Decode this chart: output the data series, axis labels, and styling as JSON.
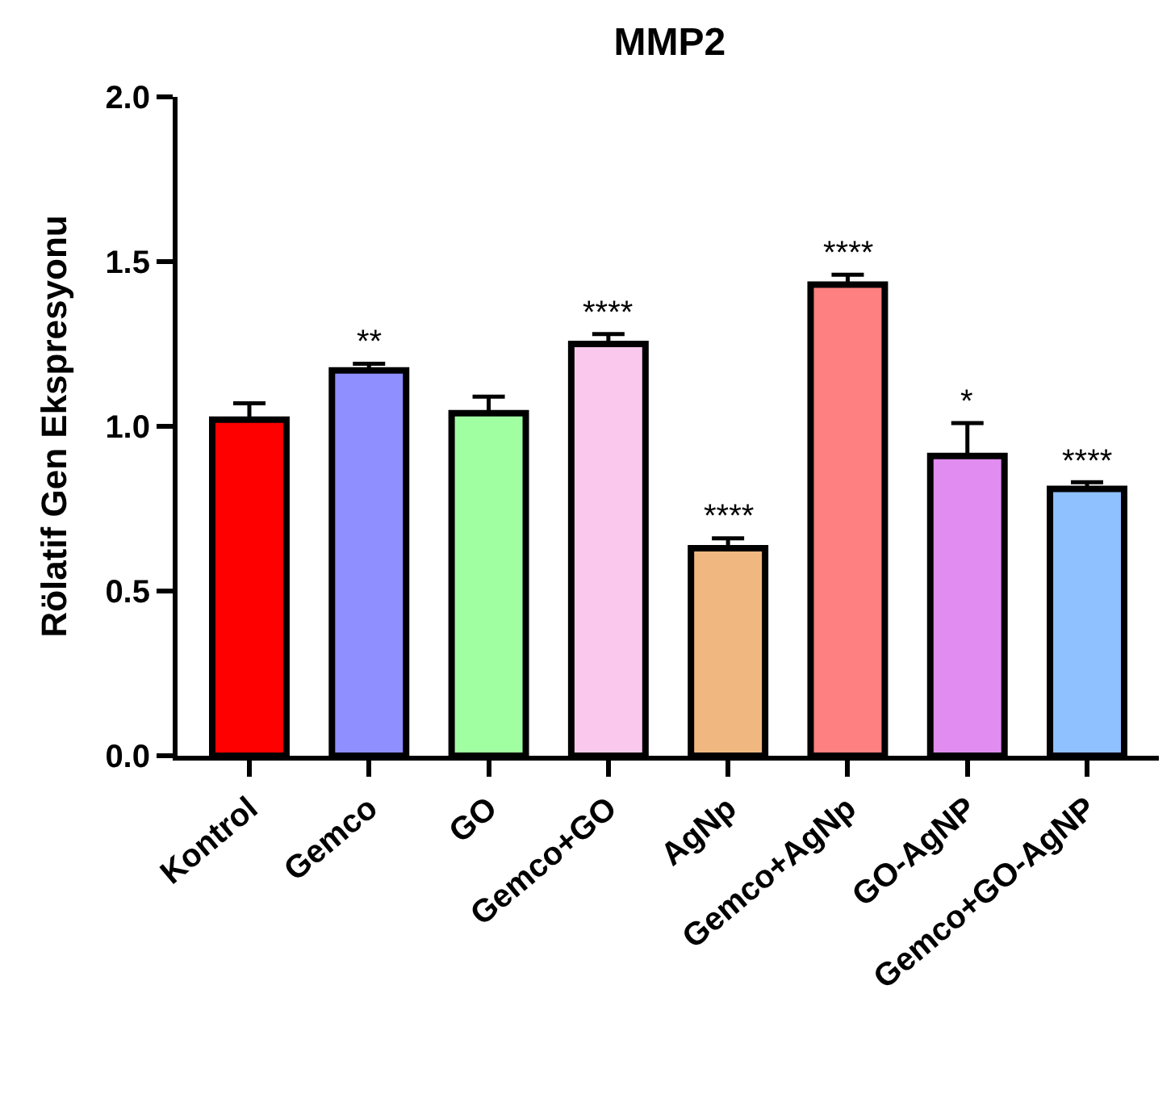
{
  "chart_data": {
    "type": "bar",
    "title": "MMP2",
    "ylabel": "Rölatif Gen Ekspresyonu",
    "categories": [
      "Kontrol",
      "Gemco",
      "GO",
      "Gemco+GO",
      "AgNp",
      "Gemco+AgNp",
      "GO-AgNP",
      "Gemco+GO-AgNP"
    ],
    "values": [
      1.02,
      1.17,
      1.04,
      1.25,
      0.63,
      1.43,
      0.91,
      0.81
    ],
    "errors": [
      [
        1.02,
        1.07
      ],
      [
        1.17,
        1.19
      ],
      [
        1.04,
        1.09
      ],
      [
        1.25,
        1.28
      ],
      [
        0.63,
        0.66
      ],
      [
        1.43,
        1.46
      ],
      [
        0.91,
        1.01
      ],
      [
        0.81,
        0.83
      ]
    ],
    "colors": [
      "#ff0000",
      "#8f8fff",
      "#a0ffa0",
      "#f9c8ec",
      "#f0b880",
      "#ff8080",
      "#e08cf0",
      "#8fc0ff"
    ],
    "ylim": [
      0,
      2.0
    ],
    "yticks": [
      {
        "value": 0,
        "label": "0.0"
      },
      {
        "value": 0.5,
        "label": "0.5"
      },
      {
        "value": 1.0,
        "label": "1.0"
      },
      {
        "value": 1.5,
        "label": "1.5"
      },
      {
        "value": 2.0,
        "label": "2.0"
      }
    ],
    "value_labels": [
      null,
      "**",
      null,
      "****",
      "****",
      "****",
      "*",
      "****"
    ]
  }
}
